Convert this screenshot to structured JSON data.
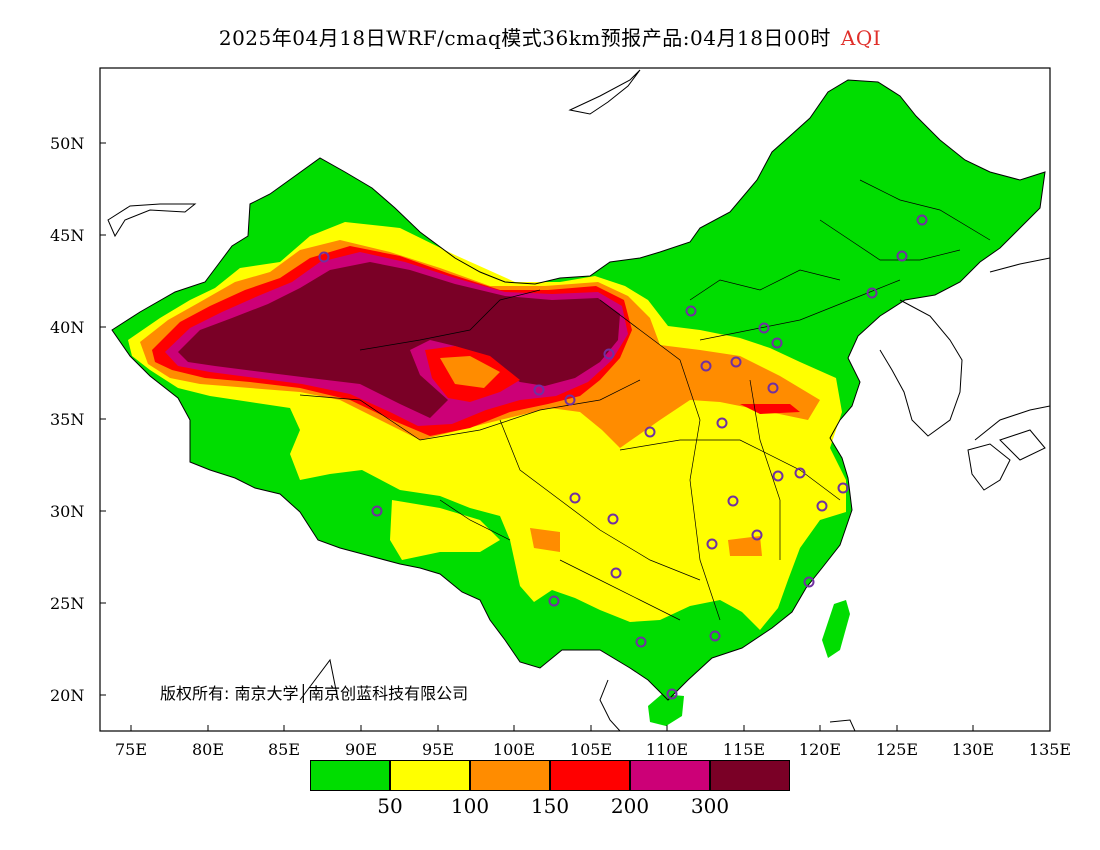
{
  "title": {
    "main": "2025年04月18日WRF/cmaq模式36km预报产品:04月18日00时",
    "variable": "AQI"
  },
  "copyright": "版权所有: 南京大学│南京创蓝科技有限公司",
  "axes": {
    "lat_labels": [
      "50N",
      "45N",
      "40N",
      "35N",
      "30N",
      "25N",
      "20N"
    ],
    "lon_labels": [
      "75E",
      "80E",
      "85E",
      "90E",
      "95E",
      "100E",
      "105E",
      "110E",
      "115E",
      "120E",
      "125E",
      "130E",
      "135E"
    ]
  },
  "legend": {
    "colors": [
      "#00dd00",
      "#ffff00",
      "#ff8c00",
      "#ff0000",
      "#cc0077",
      "#7a0026"
    ],
    "labels": [
      "50",
      "100",
      "150",
      "200",
      "300"
    ]
  },
  "colors": {
    "good": "#00dd00",
    "moderate": "#ffff00",
    "usg": "#ff8c00",
    "unhealthy": "#ff0000",
    "very_unhealthy": "#cc0077",
    "hazardous": "#7a0026",
    "station_marker": "#7030a0"
  }
}
